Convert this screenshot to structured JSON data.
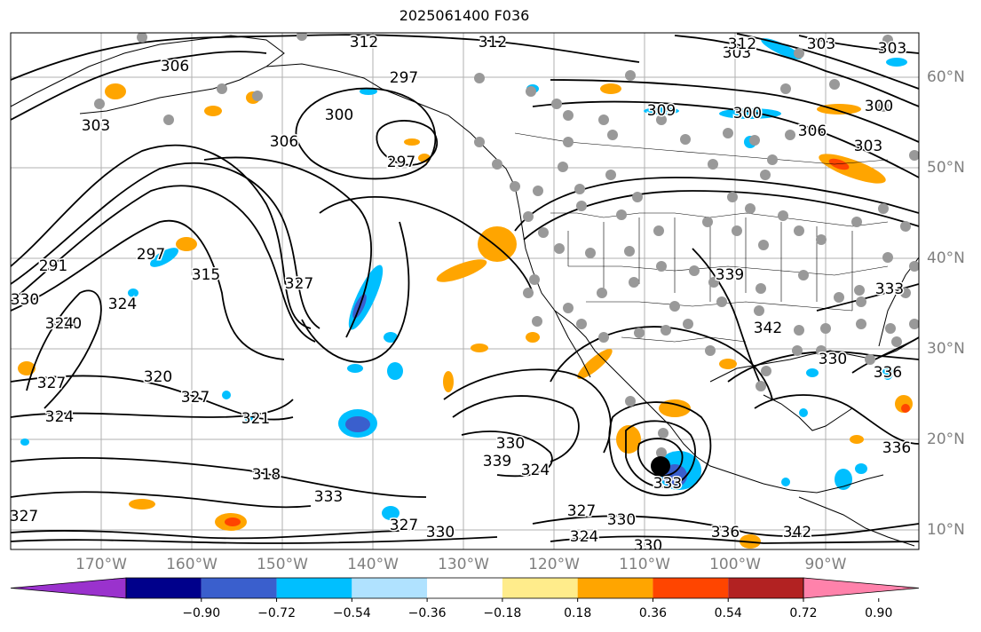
{
  "title": "2025061400 F036",
  "axes": {
    "lon_labels": [
      "170°W",
      "160°W",
      "150°W",
      "140°W",
      "130°W",
      "120°W",
      "110°W",
      "100°W",
      "90°W"
    ],
    "lat_labels": [
      "60°N",
      "50°N",
      "40°N",
      "30°N",
      "20°N",
      "10°N"
    ]
  },
  "contours": {
    "line_color": "#000000",
    "labels": [
      "312",
      "312",
      "306",
      "303",
      "300",
      "300",
      "297",
      "303",
      "306",
      "297",
      "306",
      "303",
      "300",
      "309",
      "312",
      "303",
      "303",
      "291",
      "297",
      "315",
      "324",
      "324",
      "327",
      "327",
      "320",
      "327",
      "321",
      "330",
      "324",
      "318",
      "333",
      "327",
      "330",
      "324",
      "327",
      "330",
      "330",
      "336",
      "342",
      "339",
      "333",
      "339",
      "342",
      "330",
      "336",
      "333",
      "336",
      "330",
      "330",
      "324",
      "327"
    ]
  },
  "shading": {
    "colors": {
      "purple": "#9a32cd",
      "navy": "#00008b",
      "royal": "#3a5fcd",
      "cyan": "#00bfff",
      "light_blue": "#b0e2ff",
      "white": "#ffffff",
      "yellow": "#ffec8b",
      "orange": "#ffa500",
      "red_orange": "#ff4500",
      "firebrick": "#b22222",
      "pink": "#ff82ab"
    }
  },
  "markers": {
    "dot_color": "#999999",
    "center_color": "#000000"
  },
  "colorbar": {
    "ticks": [
      "−0.90",
      "−0.72",
      "−0.54",
      "−0.36",
      "−0.18",
      "0.18",
      "0.36",
      "0.54",
      "0.72",
      "0.90"
    ],
    "colors": [
      "#9a32cd",
      "#00008b",
      "#3a5fcd",
      "#00bfff",
      "#b0e2ff",
      "#ffffff",
      "#ffec8b",
      "#ffa500",
      "#ff4500",
      "#b22222",
      "#ff82ab"
    ],
    "extend": "both"
  }
}
